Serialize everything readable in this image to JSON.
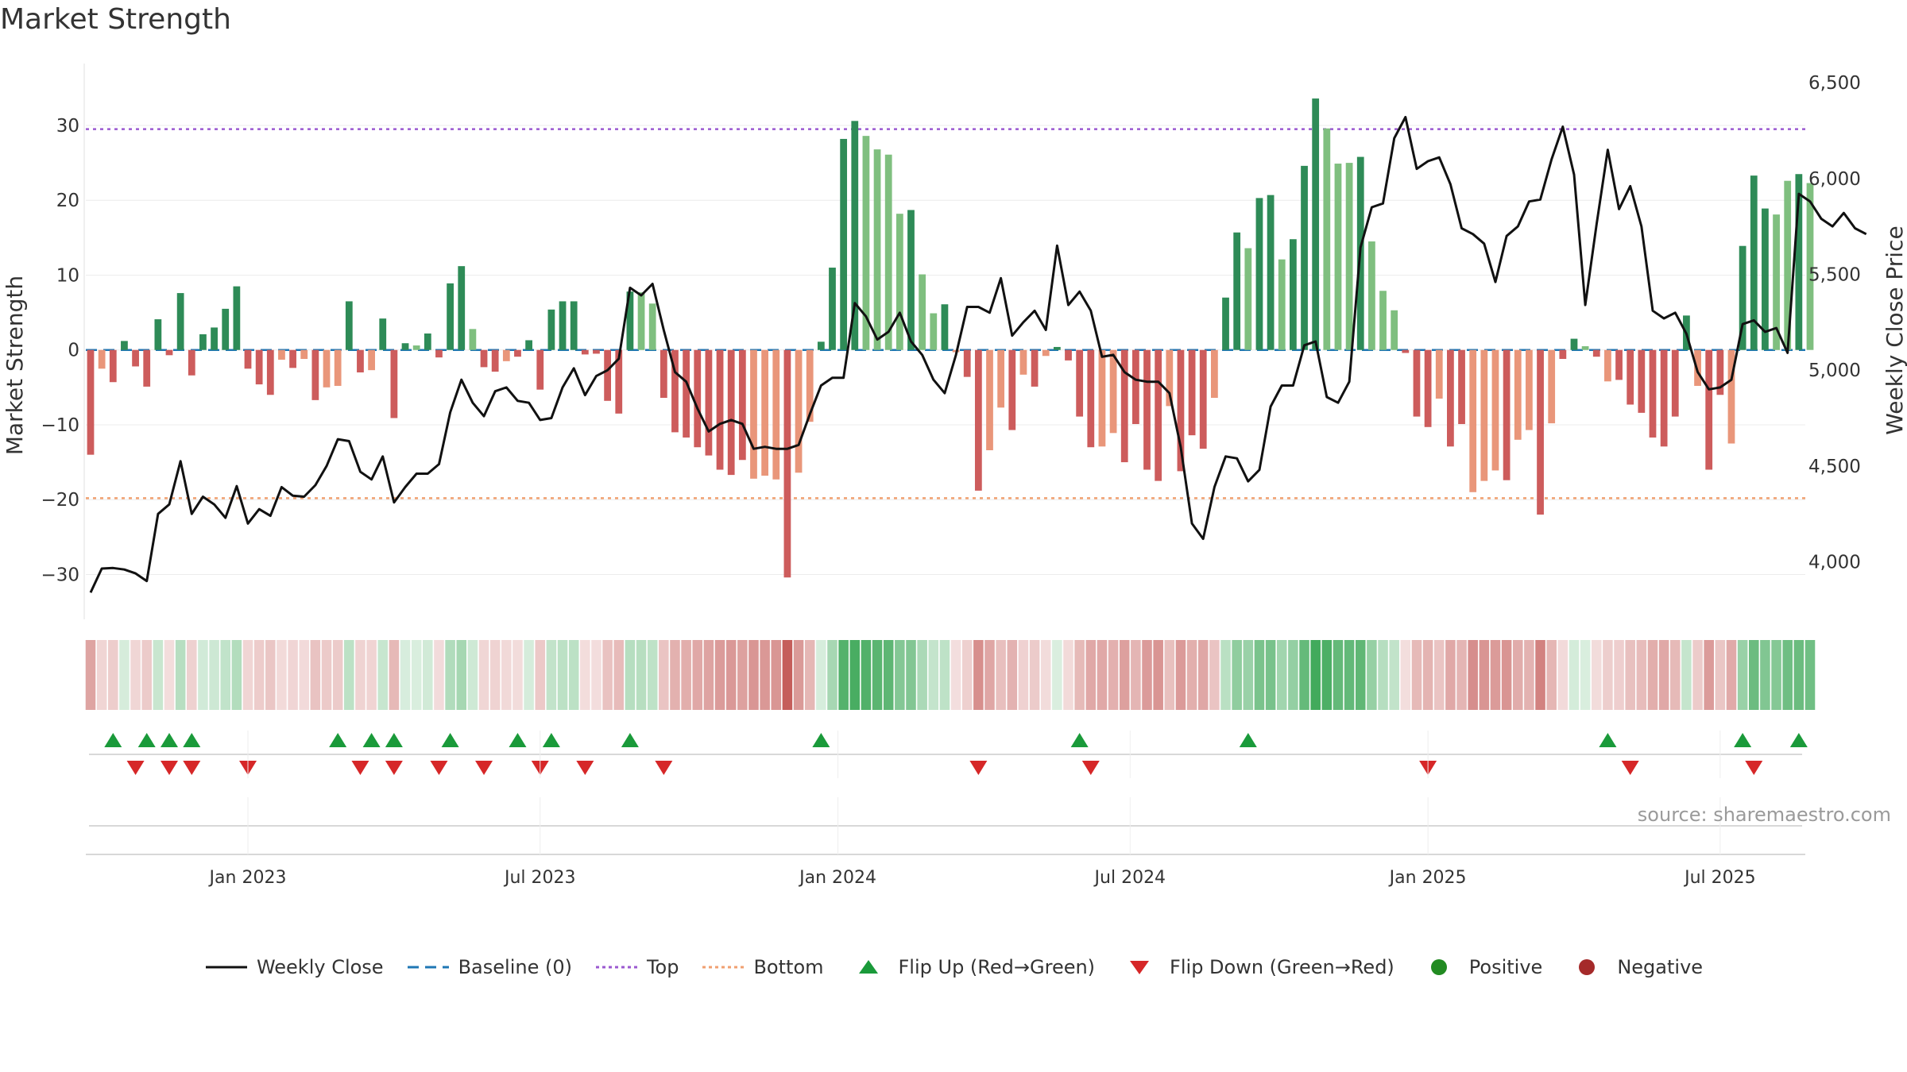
{
  "title": "Market Strength",
  "source": "source: sharemaestro.com",
  "colors": {
    "dark_green": "#2e8b57",
    "light_green": "#7fbf7f",
    "dark_red": "#cd5c5c",
    "light_red": "#e9967a",
    "top_line": "#9b59d0",
    "bottom_line": "#f0a070",
    "baseline": "#1f77b4",
    "close_line": "#111111",
    "flip_up": "#1a9a3a",
    "flip_down": "#d62728",
    "positive": "#228b22",
    "negative": "#a52a2a"
  },
  "legend": [
    {
      "label": "Weekly Close",
      "symbol": "line-solid"
    },
    {
      "label": "Baseline (0)",
      "symbol": "line-dash"
    },
    {
      "label": "Top",
      "symbol": "line-dot-top"
    },
    {
      "label": "Bottom",
      "symbol": "line-dot-bottom"
    },
    {
      "label": "Flip Up (Red→Green)",
      "symbol": "tri-up"
    },
    {
      "label": "Flip Down (Green→Red)",
      "symbol": "tri-down"
    },
    {
      "label": "Positive",
      "symbol": "dot-positive"
    },
    {
      "label": "Negative",
      "symbol": "dot-negative"
    }
  ],
  "chart_data": {
    "type": "bar",
    "ylabel": "Market Strength",
    "y2label": "Weekly Close Price",
    "ylim": [
      -36,
      37
    ],
    "y2lim": [
      3700,
      6550
    ],
    "yticks": [
      {
        "label": "30",
        "value": 30
      },
      {
        "label": "20",
        "value": 20
      },
      {
        "label": "10",
        "value": 10
      },
      {
        "label": "0",
        "value": 0
      },
      {
        "label": "−10",
        "value": -10
      },
      {
        "label": "−20",
        "value": -20
      },
      {
        "label": "−30",
        "value": -30
      }
    ],
    "y2ticks": [
      {
        "label": "4,000",
        "value": 4000
      },
      {
        "label": "4,500",
        "value": 4500
      },
      {
        "label": "5,000",
        "value": 5000
      },
      {
        "label": "5,500",
        "value": 5500
      },
      {
        "label": "6,000",
        "value": 6000
      },
      {
        "label": "6,500",
        "value": 6500
      }
    ],
    "xticks": [
      {
        "label": "Jan 2023",
        "week": 14
      },
      {
        "label": "Jul 2023",
        "week": 40
      },
      {
        "label": "Jan 2024",
        "week": 66.5
      },
      {
        "label": "Jul 2024",
        "week": 92.5
      },
      {
        "label": "Jan 2025",
        "week": 119
      },
      {
        "label": "Jul 2025",
        "week": 145
      }
    ],
    "top": 29.5,
    "bottom": -19.8,
    "strength": [
      -14,
      -2.5,
      -4.3,
      1.2,
      -2.2,
      -4.9,
      4.1,
      -0.7,
      7.6,
      -3.4,
      2.1,
      3.0,
      5.5,
      8.5,
      -2.5,
      -4.6,
      -6.0,
      -1.3,
      -2.4,
      -1.2,
      -6.7,
      -5.0,
      -4.8,
      6.5,
      -3.0,
      -2.7,
      4.2,
      -9.1,
      0.9,
      0.6,
      2.2,
      -1.0,
      8.9,
      11.2,
      2.8,
      -2.3,
      -2.9,
      -1.5,
      -0.9,
      1.3,
      -5.3,
      5.4,
      6.5,
      6.5,
      -0.6,
      -0.5,
      -6.8,
      -8.5,
      7.8,
      7.7,
      6.2,
      -6.4,
      -11,
      -11.7,
      -13,
      -14.1,
      -16,
      -16.7,
      -14.7,
      -17.2,
      -16.8,
      -17.3,
      -30.4,
      -16.4,
      -9.6,
      1.1,
      11,
      28.2,
      30.6,
      28.6,
      26.8,
      26.1,
      18.2,
      18.7,
      10.1,
      4.9,
      6.1,
      -0.3,
      -3.6,
      -18.8,
      -13.4,
      -7.7,
      -10.7,
      -3.3,
      -4.9,
      -0.8,
      0.4,
      -1.4,
      -8.9,
      -13,
      -12.9,
      -11.1,
      -15,
      -9.9,
      -16,
      -17.5,
      -7.5,
      -16.2,
      -11.4,
      -13.2,
      -6.4,
      7.0,
      15.7,
      13.6,
      20.3,
      20.7,
      12.1,
      14.8,
      24.6,
      33.6,
      29.6,
      24.9,
      25.0,
      25.8,
      14.5,
      7.9,
      5.3,
      -0.4,
      -8.9,
      -10.3,
      -6.5,
      -12.9,
      -9.9,
      -19.0,
      -17.5,
      -16.1,
      -17.4,
      -12.0,
      -10.7,
      -22.0,
      -9.8,
      -1.2,
      1.5,
      0.5,
      -0.9,
      -4.2,
      -4.0,
      -7.3,
      -8.4,
      -11.7,
      -12.9,
      -8.9,
      4.6,
      -4.8,
      -16.0,
      -6.0,
      -12.5,
      13.9,
      23.3,
      18.9,
      18.1,
      22.6,
      23.5,
      22.3
    ],
    "shade": [
      "d",
      "l",
      "d",
      "d",
      "d",
      "d",
      "d",
      "d",
      "d",
      "d",
      "d",
      "d",
      "d",
      "d",
      "d",
      "d",
      "d",
      "l",
      "d",
      "l",
      "d",
      "l",
      "l",
      "d",
      "d",
      "l",
      "d",
      "d",
      "d",
      "l",
      "d",
      "d",
      "d",
      "d",
      "l",
      "d",
      "d",
      "l",
      "d",
      "d",
      "d",
      "d",
      "d",
      "d",
      "d",
      "d",
      "d",
      "d",
      "d",
      "l",
      "l",
      "d",
      "d",
      "d",
      "d",
      "d",
      "d",
      "d",
      "d",
      "l",
      "l",
      "l",
      "d",
      "l",
      "l",
      "d",
      "d",
      "d",
      "d",
      "l",
      "l",
      "l",
      "l",
      "d",
      "l",
      "l",
      "d",
      "l",
      "d",
      "d",
      "l",
      "l",
      "d",
      "l",
      "d",
      "l",
      "d",
      "d",
      "d",
      "d",
      "l",
      "l",
      "d",
      "d",
      "d",
      "d",
      "l",
      "d",
      "d",
      "d",
      "l",
      "d",
      "d",
      "l",
      "d",
      "d",
      "l",
      "d",
      "d",
      "d",
      "l",
      "l",
      "l",
      "d",
      "l",
      "l",
      "l",
      "d",
      "d",
      "d",
      "l",
      "d",
      "d",
      "l",
      "l",
      "l",
      "d",
      "l",
      "l",
      "d",
      "l",
      "d",
      "d",
      "l",
      "d",
      "l",
      "d",
      "d",
      "d",
      "d",
      "d",
      "d",
      "d",
      "l",
      "d",
      "d",
      "l",
      "d",
      "d",
      "d",
      "l",
      "l",
      "d",
      "l",
      "l"
    ],
    "close": [
      3840,
      3965,
      3968,
      3960,
      3940,
      3900,
      4250,
      4300,
      4525,
      4250,
      4340,
      4300,
      4230,
      4395,
      4200,
      4275,
      4240,
      4390,
      4345,
      4340,
      4400,
      4500,
      4640,
      4630,
      4470,
      4430,
      4550,
      4310,
      4390,
      4460,
      4460,
      4510,
      4780,
      4950,
      4830,
      4760,
      4890,
      4910,
      4840,
      4830,
      4740,
      4750,
      4910,
      5010,
      4870,
      4970,
      5000,
      5060,
      5430,
      5390,
      5450,
      5210,
      4990,
      4940,
      4800,
      4680,
      4720,
      4740,
      4720,
      4590,
      4600,
      4590,
      4590,
      4610,
      4770,
      4920,
      4960,
      4960,
      5350,
      5280,
      5160,
      5200,
      5300,
      5150,
      5080,
      4950,
      4880,
      5080,
      5330,
      5330,
      5300,
      5480,
      5180,
      5250,
      5310,
      5210,
      5650,
      5340,
      5410,
      5310,
      5070,
      5080,
      4990,
      4950,
      4940,
      4940,
      4880,
      4600,
      4200,
      4120,
      4390,
      4550,
      4540,
      4420,
      4480,
      4810,
      4920,
      4920,
      5130,
      5150,
      4860,
      4830,
      4940,
      5640,
      5850,
      5870,
      6210,
      6320,
      6050,
      6090,
      6110,
      5970,
      5740,
      5710,
      5660,
      5460,
      5700,
      5750,
      5880,
      5890,
      6100,
      6270,
      6020,
      5340,
      5760,
      6150,
      5840,
      5960,
      5750,
      5310,
      5270,
      5300,
      5190,
      4990,
      4900,
      4910,
      4950,
      5240,
      5260,
      5200,
      5220,
      5090,
      5920,
      5880,
      5790,
      5750,
      5820,
      5740,
      5710
    ],
    "flip_up": [
      2,
      5,
      7,
      9,
      22,
      25,
      27,
      32,
      38,
      41,
      48,
      65,
      88,
      103,
      135,
      147,
      152
    ],
    "flip_down": [
      4,
      7,
      9,
      14,
      24,
      27,
      31,
      35,
      40,
      44,
      51,
      79,
      89,
      119,
      137,
      148
    ]
  }
}
